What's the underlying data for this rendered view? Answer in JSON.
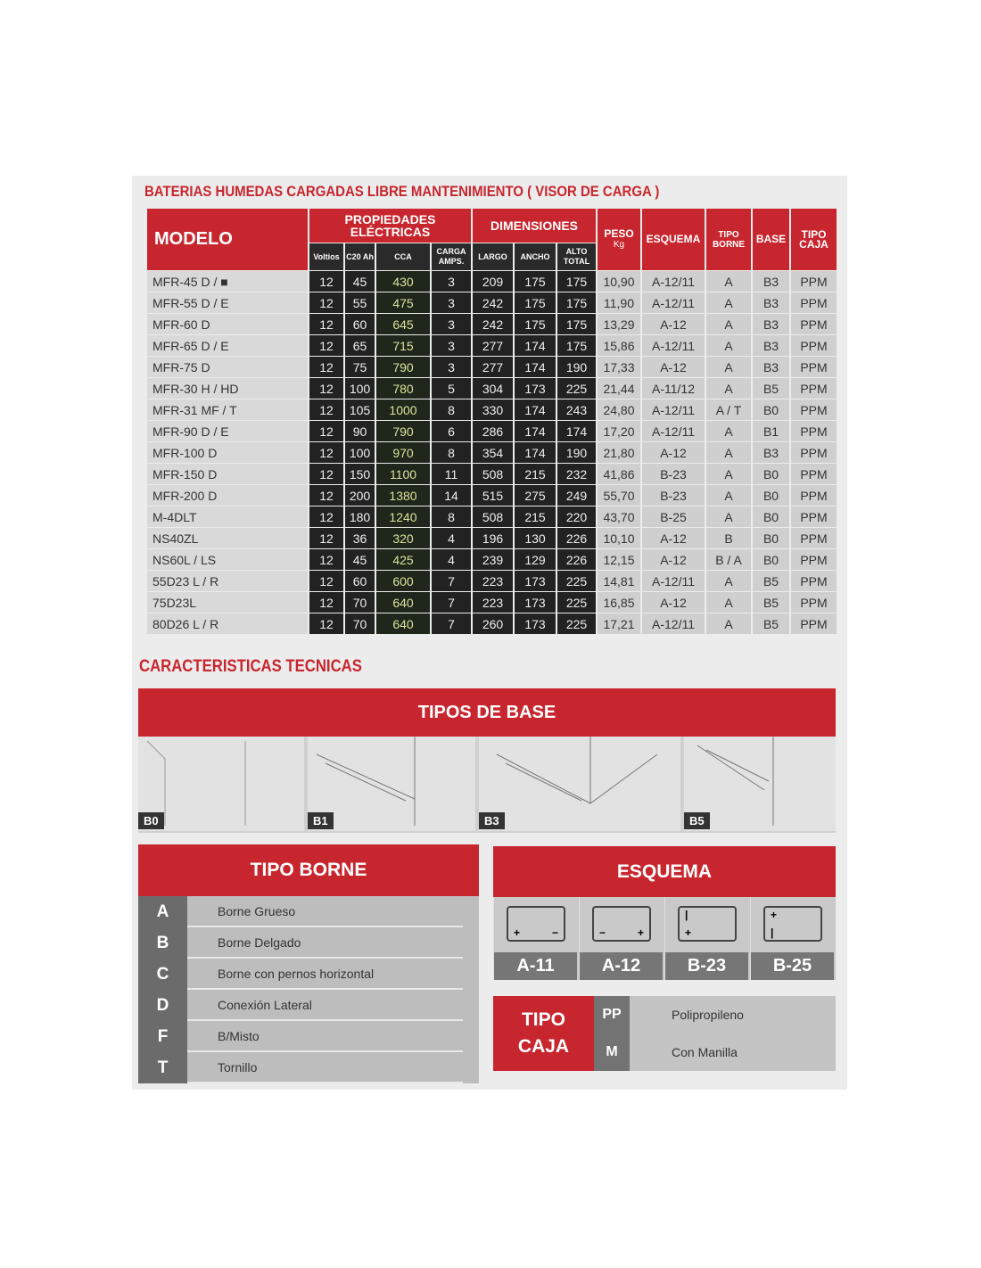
{
  "title": "BATERIAS HUMEDAS CARGADAS LIBRE MANTENIMIENTO ( VISOR DE CARGA )",
  "table": {
    "headers": {
      "modelo": "MODELO",
      "propiedades": "PROPIEDADES ELÉCTRICAS",
      "dimensiones": "DIMENSIONES",
      "peso": "PESO",
      "peso_unit": "Kg",
      "esquema": "ESQUEMA",
      "tipo_borne": "TIPO BORNE",
      "base": "BASE",
      "tipo_caja": "TIPO CAJA",
      "voltios": "Voltios",
      "c20": "C20 Ah",
      "cca": "CCA",
      "carga": "CARGA AMPS.",
      "largo": "LARGO",
      "ancho": "ANCHO",
      "alto": "ALTO TOTAL"
    },
    "rows": [
      [
        "MFR-45 D / ■",
        "12",
        "45",
        "430",
        "3",
        "209",
        "175",
        "175",
        "10,90",
        "A-12/11",
        "A",
        "B3",
        "PPM"
      ],
      [
        "MFR-55 D / E",
        "12",
        "55",
        "475",
        "3",
        "242",
        "175",
        "175",
        "11,90",
        "A-12/11",
        "A",
        "B3",
        "PPM"
      ],
      [
        "MFR-60 D",
        "12",
        "60",
        "645",
        "3",
        "242",
        "175",
        "175",
        "13,29",
        "A-12",
        "A",
        "B3",
        "PPM"
      ],
      [
        "MFR-65 D / E",
        "12",
        "65",
        "715",
        "3",
        "277",
        "174",
        "175",
        "15,86",
        "A-12/11",
        "A",
        "B3",
        "PPM"
      ],
      [
        "MFR-75 D",
        "12",
        "75",
        "790",
        "3",
        "277",
        "174",
        "190",
        "17,33",
        "A-12",
        "A",
        "B3",
        "PPM"
      ],
      [
        "MFR-30 H / HD",
        "12",
        "100",
        "780",
        "5",
        "304",
        "173",
        "225",
        "21,44",
        "A-11/12",
        "A",
        "B5",
        "PPM"
      ],
      [
        "MFR-31 MF / T",
        "12",
        "105",
        "1000",
        "8",
        "330",
        "174",
        "243",
        "24,80",
        "A-12/11",
        "A / T",
        "B0",
        "PPM"
      ],
      [
        "MFR-90 D / E",
        "12",
        "90",
        "790",
        "6",
        "286",
        "174",
        "174",
        "17,20",
        "A-12/11",
        "A",
        "B1",
        "PPM"
      ],
      [
        "MFR-100 D",
        "12",
        "100",
        "970",
        "8",
        "354",
        "174",
        "190",
        "21,80",
        "A-12",
        "A",
        "B3",
        "PPM"
      ],
      [
        "MFR-150 D",
        "12",
        "150",
        "1100",
        "11",
        "508",
        "215",
        "232",
        "41,86",
        "B-23",
        "A",
        "B0",
        "PPM"
      ],
      [
        "MFR-200 D",
        "12",
        "200",
        "1380",
        "14",
        "515",
        "275",
        "249",
        "55,70",
        "B-23",
        "A",
        "B0",
        "PPM"
      ],
      [
        "M-4DLT",
        "12",
        "180",
        "1240",
        "8",
        "508",
        "215",
        "220",
        "43,70",
        "B-25",
        "A",
        "B0",
        "PPM"
      ],
      [
        "NS40ZL",
        "12",
        "36",
        "320",
        "4",
        "196",
        "130",
        "226",
        "10,10",
        "A-12",
        "B",
        "B0",
        "PPM"
      ],
      [
        "NS60L / LS",
        "12",
        "45",
        "425",
        "4",
        "239",
        "129",
        "226",
        "12,15",
        "A-12",
        "B / A",
        "B0",
        "PPM"
      ],
      [
        "55D23 L / R",
        "12",
        "60",
        "600",
        "7",
        "223",
        "173",
        "225",
        "14,81",
        "A-12/11",
        "A",
        "B5",
        "PPM"
      ],
      [
        "75D23L",
        "12",
        "70",
        "640",
        "7",
        "223",
        "173",
        "225",
        "16,85",
        "A-12",
        "A",
        "B5",
        "PPM"
      ],
      [
        "80D26 L / R",
        "12",
        "70",
        "640",
        "7",
        "260",
        "173",
        "225",
        "17,21",
        "A-12/11",
        "A",
        "B5",
        "PPM"
      ]
    ]
  },
  "caracteristicas": "CARACTERISTICAS TECNICAS",
  "tipos_base": {
    "title": "TIPOS DE BASE",
    "items": [
      "B0",
      "B1",
      "B3",
      "B5"
    ]
  },
  "tipo_borne": {
    "title": "TIPO BORNE",
    "items": [
      {
        "code": "A",
        "label": "Borne Grueso"
      },
      {
        "code": "B",
        "label": "Borne Delgado"
      },
      {
        "code": "C",
        "label": "Borne con pernos horizontal"
      },
      {
        "code": "D",
        "label": "Conexión Lateral"
      },
      {
        "code": "F",
        "label": "B/Misto"
      },
      {
        "code": "T",
        "label": "Tornillo"
      }
    ]
  },
  "esquema": {
    "title": "ESQUEMA",
    "items": [
      {
        "label": "A-11",
        "tl": "",
        "bl": "+",
        "br": "−"
      },
      {
        "label": "A-12",
        "tl": "",
        "bl": "−",
        "br": "+"
      },
      {
        "label": "B-23",
        "tl": "|",
        "bl": "+",
        "br": ""
      },
      {
        "label": "B-25",
        "tl": "+",
        "bl": "|",
        "br": ""
      }
    ]
  },
  "tipo_caja": {
    "title1": "TIPO",
    "title2": "CAJA",
    "items": [
      {
        "code": "PP",
        "label": "Polipropileno"
      },
      {
        "code": "M",
        "label": "Con Manilla"
      }
    ]
  },
  "colors": {
    "brand_red": "#c8262e",
    "dark_cell": "#222222",
    "cca_text": "#d8e49a"
  }
}
